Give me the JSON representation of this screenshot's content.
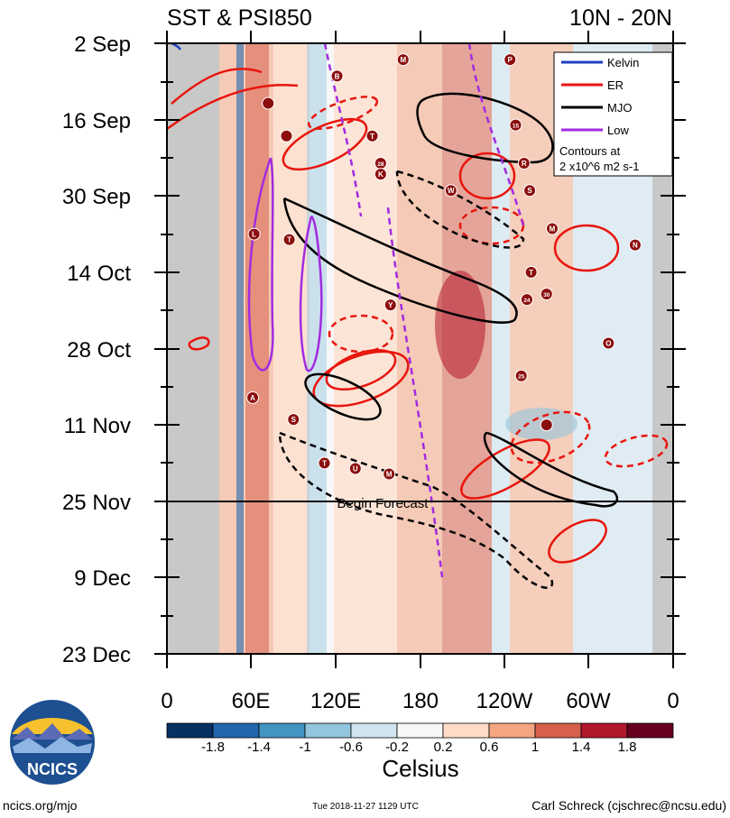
{
  "chart_data": {
    "type": "heatmap",
    "title_left": "SST & PSI850",
    "title_right": "10N - 20N",
    "y_tick_labels": [
      "2 Sep",
      "16 Sep",
      "30 Sep",
      "14 Oct",
      "28 Oct",
      "11 Nov",
      "25 Nov",
      "9 Dec",
      "23 Dec"
    ],
    "x_tick_labels": [
      "0",
      "60E",
      "120E",
      "180",
      "120W",
      "60W",
      "0"
    ],
    "x_range_deg_east": [
      0,
      360
    ],
    "colorbar": {
      "label": "Celsius",
      "tick_labels": [
        "-1.8",
        "-1.4",
        "-1",
        "-0.6",
        "-0.2",
        "0.2",
        "0.6",
        "1",
        "1.4",
        "1.8"
      ],
      "colors": [
        "#053061",
        "#2166ac",
        "#4393c3",
        "#92c5de",
        "#d1e5f0",
        "#f7f7f7",
        "#fddbc7",
        "#f4a582",
        "#d6604d",
        "#b2182b",
        "#67001f"
      ]
    },
    "legend": {
      "placement": "top-right",
      "items": [
        {
          "name": "Kelvin",
          "color": "#1f3fbf"
        },
        {
          "name": "ER",
          "color": "#e8150d"
        },
        {
          "name": "MJO",
          "color": "#000000"
        },
        {
          "name": "Low",
          "color": "#a32be0"
        }
      ],
      "note_lines": [
        "Contours at",
        "2 x10^6 m2 s-1"
      ]
    },
    "forecast_label": "Begin Forecast",
    "forecast_start": "25 Nov",
    "storms": [
      {
        "label": "M",
        "lon": 168,
        "date": "5 Sep"
      },
      {
        "label": "P",
        "lon": 244,
        "date": "5 Sep"
      },
      {
        "label": "B",
        "lon": 121,
        "date": "8 Sep"
      },
      {
        "label": "",
        "lon": 72,
        "date": "13 Sep"
      },
      {
        "label": "",
        "lon": 85,
        "date": "19 Sep"
      },
      {
        "label": "T",
        "lon": 146,
        "date": "19 Sep"
      },
      {
        "label": "15",
        "lon": 248,
        "date": "17 Sep"
      },
      {
        "label": "28",
        "lon": 152,
        "date": "24 Sep"
      },
      {
        "label": "K",
        "lon": 152,
        "date": "26 Sep"
      },
      {
        "label": "R",
        "lon": 254,
        "date": "24 Sep"
      },
      {
        "label": "W",
        "lon": 202,
        "date": "29 Sep"
      },
      {
        "label": "S",
        "lon": 258,
        "date": "29 Sep"
      },
      {
        "label": "L",
        "lon": 62,
        "date": "7 Oct"
      },
      {
        "label": "T",
        "lon": 87,
        "date": "8 Oct"
      },
      {
        "label": "M",
        "lon": 274,
        "date": "6 Oct"
      },
      {
        "label": "N",
        "lon": 333,
        "date": "9 Oct"
      },
      {
        "label": "T",
        "lon": 259,
        "date": "14 Oct"
      },
      {
        "label": "24",
        "lon": 256,
        "date": "19 Oct"
      },
      {
        "label": "30",
        "lon": 270,
        "date": "18 Oct"
      },
      {
        "label": "Y",
        "lon": 159,
        "date": "20 Oct"
      },
      {
        "label": "O",
        "lon": 314,
        "date": "27 Oct"
      },
      {
        "label": "25",
        "lon": 252,
        "date": "2 Nov"
      },
      {
        "label": "A",
        "lon": 61,
        "date": "6 Nov"
      },
      {
        "label": "S",
        "lon": 90,
        "date": "10 Nov"
      },
      {
        "label": "",
        "lon": 270,
        "date": "11 Nov"
      },
      {
        "label": "T",
        "lon": 112,
        "date": "18 Nov"
      },
      {
        "label": "U",
        "lon": 134,
        "date": "19 Nov"
      },
      {
        "label": "M",
        "lon": 158,
        "date": "20 Nov"
      }
    ]
  },
  "footer": {
    "logo_text": "NCICS",
    "left": "ncics.org/mjo",
    "center": "Tue 2018-11-27 1129 UTC",
    "right": "Carl Schreck (cjschrec@ncsu.edu)"
  }
}
